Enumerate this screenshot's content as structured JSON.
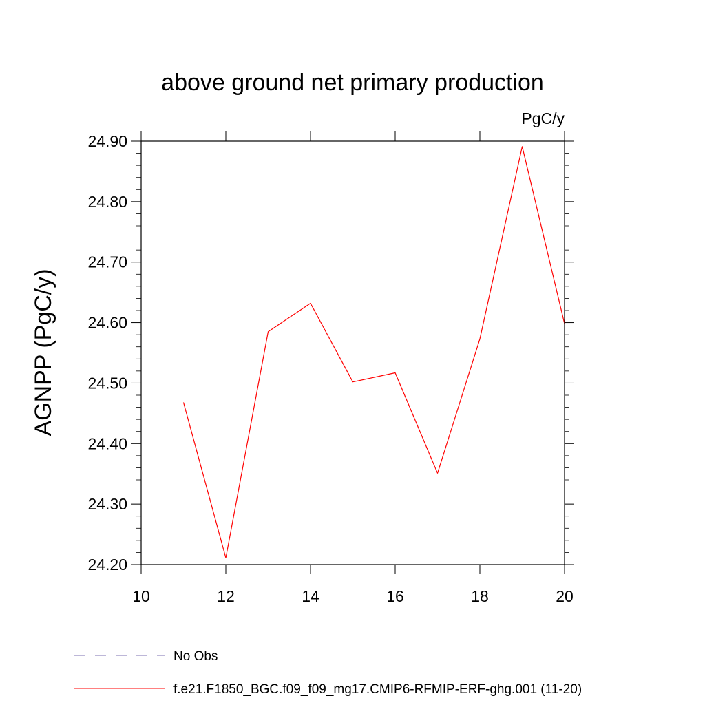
{
  "chart_data": {
    "type": "line",
    "title": "above ground net primary production",
    "units_label": "PgC/y",
    "ylabel": "AGNPP  (PgC/y)",
    "xlabel": "",
    "xlim": [
      10,
      20
    ],
    "ylim": [
      24.2,
      24.9
    ],
    "x_ticks": [
      10,
      12,
      14,
      16,
      18,
      20
    ],
    "x_tick_labels": [
      "10",
      "12",
      "14",
      "16",
      "18",
      "20"
    ],
    "y_ticks": [
      24.2,
      24.3,
      24.4,
      24.5,
      24.6,
      24.7,
      24.8,
      24.9
    ],
    "y_tick_labels": [
      "24.20",
      "24.30",
      "24.40",
      "24.50",
      "24.60",
      "24.70",
      "24.80",
      "24.90"
    ],
    "series": [
      {
        "name": "f.e21.F1850_BGC.f09_f09_mg17.CMIP6-RFMIP-ERF-ghg.001 (11-20)",
        "color": "#ff0000",
        "dash": "solid",
        "x": [
          11,
          12,
          13,
          14,
          15,
          16,
          17,
          18,
          19,
          20
        ],
        "values": [
          24.468,
          24.211,
          24.585,
          24.632,
          24.502,
          24.517,
          24.351,
          24.573,
          24.891,
          24.598
        ]
      }
    ],
    "legend": [
      {
        "label": "No Obs",
        "color": "#7b6fb0",
        "dash": "dashed"
      },
      {
        "label": "f.e21.F1850_BGC.f09_f09_mg17.CMIP6-RFMIP-ERF-ghg.001 (11-20)",
        "color": "#ff0000",
        "dash": "solid"
      }
    ],
    "legend_position": "bottom-left",
    "grid": false
  }
}
